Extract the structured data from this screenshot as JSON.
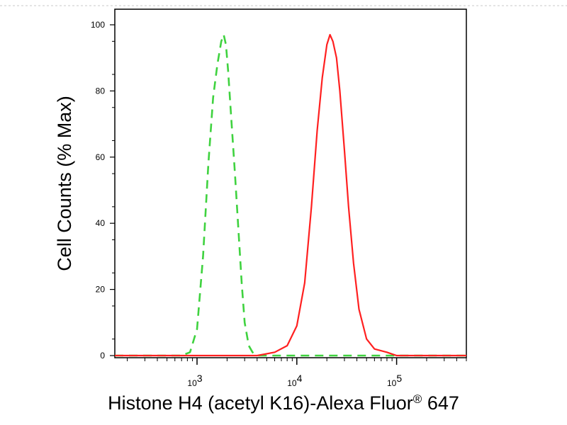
{
  "chart_data": {
    "type": "line",
    "xlabel": "Histone H4 (acetyl K16)-Alexa Fluor",
    "xlabel_sup": "®",
    "xlabel_suffix": " 647",
    "ylabel": "Cell Counts (% Max)",
    "x_scale": "log",
    "xlim": [
      150,
      500000
    ],
    "ylim": [
      0,
      100
    ],
    "yticks": [
      0,
      20,
      40,
      60,
      80,
      100
    ],
    "xticks": [
      {
        "value": 1000,
        "base": "10",
        "exp": "3"
      },
      {
        "value": 10000,
        "base": "10",
        "exp": "4"
      },
      {
        "value": 100000,
        "base": "10",
        "exp": "5"
      }
    ],
    "grid": false,
    "legend": "none",
    "series": [
      {
        "color": "#3fd23f",
        "style": "dashed",
        "x": [
          150,
          700,
          850,
          1000,
          1150,
          1300,
          1450,
          1600,
          1750,
          1850,
          1950,
          2050,
          2200,
          2400,
          2600,
          2800,
          3000,
          3300,
          3600,
          4000,
          500000
        ],
        "y": [
          0,
          0,
          1,
          8,
          30,
          58,
          78,
          88,
          95,
          97,
          94,
          86,
          72,
          55,
          38,
          22,
          10,
          3,
          1,
          0,
          0
        ]
      },
      {
        "color": "#ff2020",
        "style": "solid",
        "x": [
          150,
          4000,
          6000,
          8000,
          10000,
          12000,
          14000,
          16000,
          18000,
          20000,
          21500,
          23000,
          25000,
          27000,
          30000,
          33000,
          37000,
          42000,
          50000,
          60000,
          80000,
          100000,
          500000
        ],
        "y": [
          0,
          0,
          1,
          3,
          9,
          22,
          45,
          68,
          84,
          94,
          97,
          95,
          90,
          80,
          62,
          45,
          28,
          14,
          5,
          2,
          1,
          0,
          0
        ]
      }
    ]
  }
}
